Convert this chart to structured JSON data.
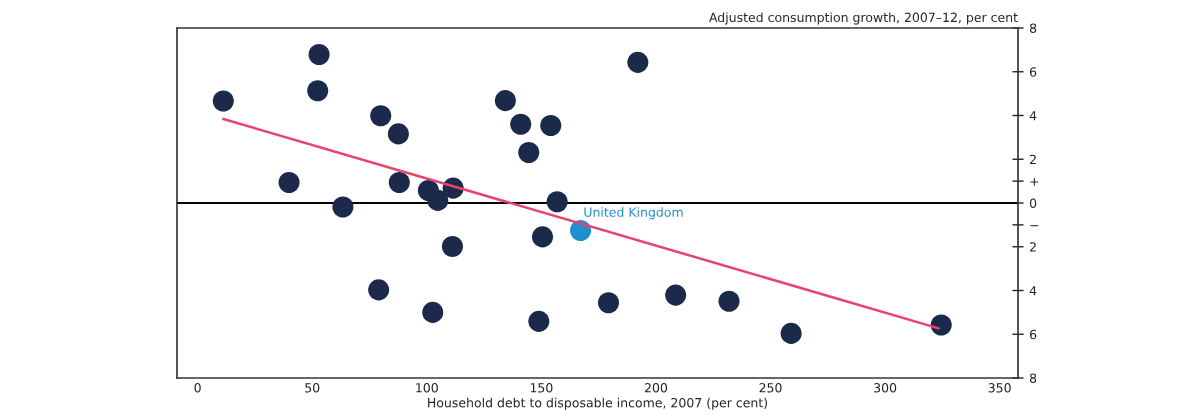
{
  "chart_data": {
    "type": "scatter",
    "xlabel": "Household debt to disposable income, 2007 (per cent)",
    "ylabel": "Adjusted consumption growth, 2007–12, per cent",
    "series": [
      {
        "color": "#1b2a4b",
        "x": [
          11.2,
          53.0,
          52.4,
          39.9,
          63.4,
          79.9,
          87.6,
          88.0,
          100.7,
          104.8,
          111.5,
          111.2,
          79.0,
          102.6,
          134.3,
          141.0,
          154.1,
          144.5,
          156.9,
          150.5,
          148.9,
          179.3,
          192.1,
          208.6,
          231.9,
          259.0,
          324.5
        ],
        "values": [
          4.66,
          6.79,
          5.13,
          0.94,
          -0.18,
          3.99,
          3.16,
          0.94,
          0.57,
          0.12,
          0.68,
          -1.99,
          -3.97,
          -5.0,
          4.68,
          3.6,
          3.54,
          2.31,
          0.06,
          -1.55,
          -5.41,
          -4.56,
          6.43,
          -4.21,
          -4.49,
          -5.96,
          -5.58
        ]
      },
      {
        "color": "#1f8fd0",
        "x": [
          167.1
        ],
        "values": [
          -1.26
        ]
      },
      {
        "type": "line",
        "marker": "none",
        "color": "#e8436a",
        "x": [
          11.2,
          323.4
        ],
        "values": [
          3.84,
          -5.73
        ]
      }
    ],
    "annotations": [
      {
        "text": "United Kingdom",
        "x": 167.1,
        "y": -1.26
      }
    ],
    "ref_lines": [
      {
        "axis": "y",
        "value": 0,
        "color": "#000000"
      }
    ],
    "marker": "circle",
    "grid": false,
    "legend": false,
    "xlim": [
      -9,
      358
    ],
    "xticks": [
      0,
      50,
      100,
      150,
      200,
      250,
      300,
      350
    ],
    "ylim": [
      -8,
      8
    ],
    "yticks": [
      8,
      6,
      4,
      2,
      {
        "value": 1,
        "label": "+"
      },
      0,
      {
        "value": -1,
        "label": "−"
      },
      {
        "value": -2,
        "label": "2"
      },
      {
        "value": -4,
        "label": "4"
      },
      {
        "value": -6,
        "label": "6"
      },
      {
        "value": -8,
        "label": "8"
      }
    ]
  }
}
